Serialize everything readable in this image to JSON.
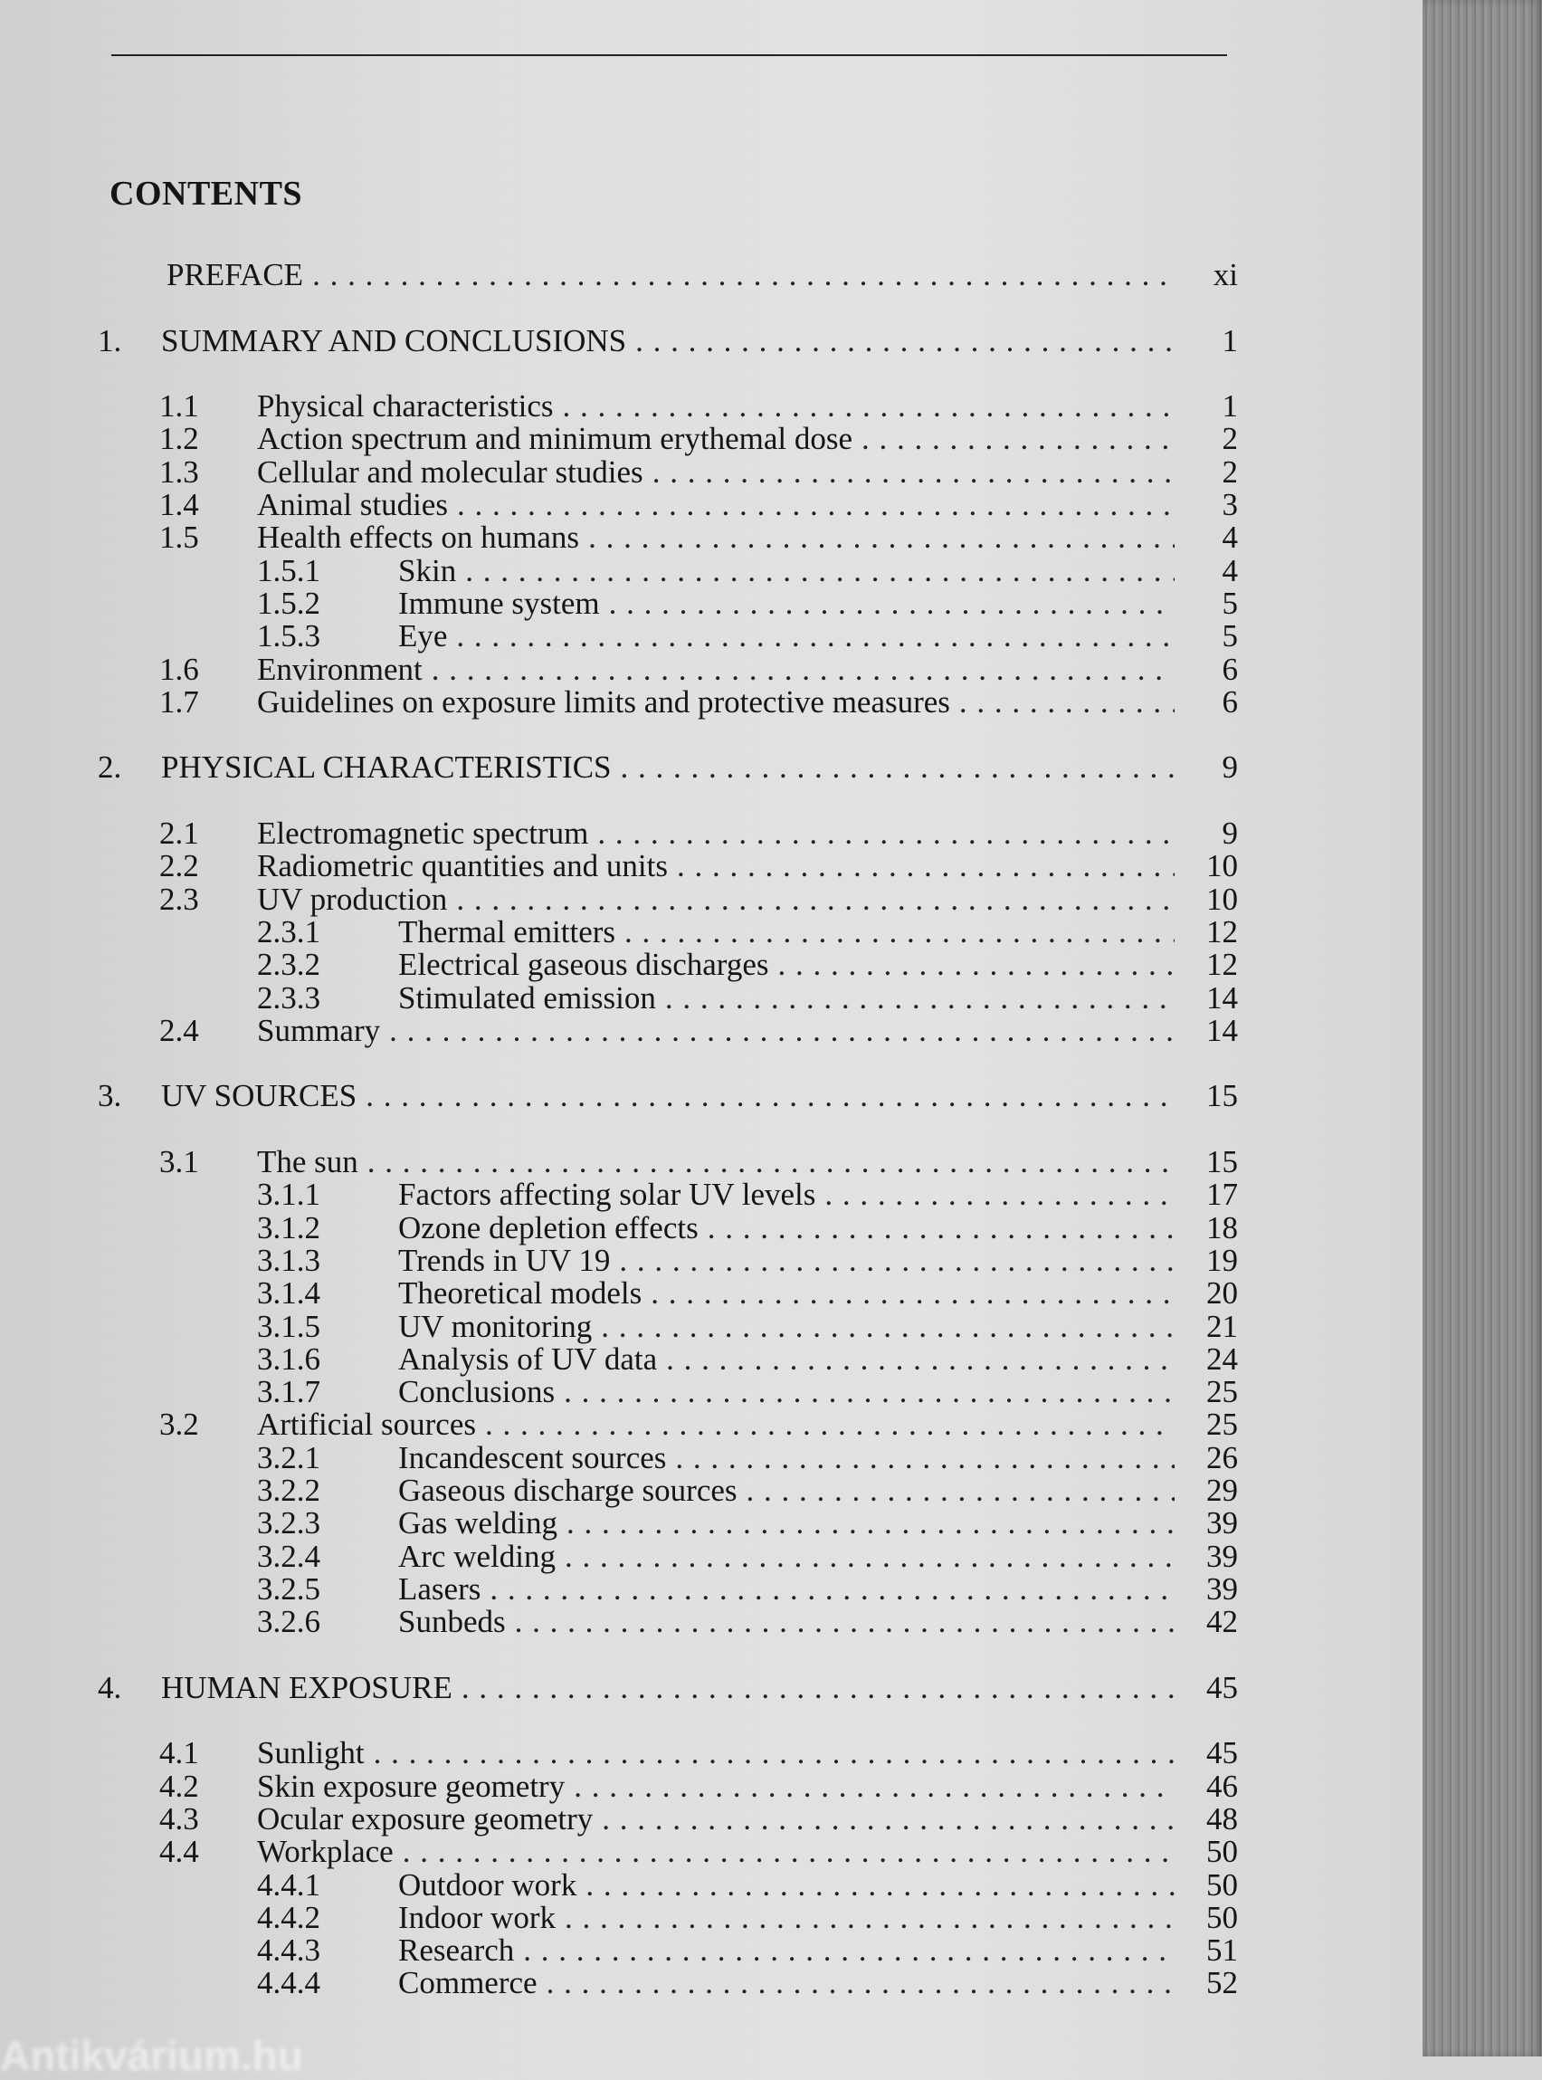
{
  "heading": "CONTENTS",
  "watermark": "Antikvárium.hu",
  "entries": [
    {
      "level": 0,
      "num": "",
      "title": "PREFACE",
      "page": "xi"
    },
    {
      "level": 0,
      "num": "1.",
      "title": "SUMMARY AND CONCLUSIONS",
      "page": "1"
    },
    {
      "level": 1,
      "num": "1.1",
      "title": "Physical characteristics",
      "page": "1"
    },
    {
      "level": 1,
      "num": "1.2",
      "title": "Action spectrum and minimum erythemal dose",
      "page": "2"
    },
    {
      "level": 1,
      "num": "1.3",
      "title": "Cellular and molecular studies",
      "page": "2"
    },
    {
      "level": 1,
      "num": "1.4",
      "title": "Animal studies",
      "page": "3"
    },
    {
      "level": 1,
      "num": "1.5",
      "title": "Health effects on humans",
      "page": "4"
    },
    {
      "level": 2,
      "num": "1.5.1",
      "title": "Skin",
      "page": "4"
    },
    {
      "level": 2,
      "num": "1.5.2",
      "title": "Immune system",
      "page": "5"
    },
    {
      "level": 2,
      "num": "1.5.3",
      "title": "Eye",
      "page": "5"
    },
    {
      "level": 1,
      "num": "1.6",
      "title": "Environment",
      "page": "6"
    },
    {
      "level": 1,
      "num": "1.7",
      "title": "Guidelines on exposure limits and protective measures",
      "page": "6"
    },
    {
      "level": 0,
      "num": "2.",
      "title": "PHYSICAL CHARACTERISTICS",
      "page": "9"
    },
    {
      "level": 1,
      "num": "2.1",
      "title": "Electromagnetic spectrum",
      "page": "9"
    },
    {
      "level": 1,
      "num": "2.2",
      "title": "Radiometric quantities and units",
      "page": "10"
    },
    {
      "level": 1,
      "num": "2.3",
      "title": "UV production",
      "page": "10"
    },
    {
      "level": 2,
      "num": "2.3.1",
      "title": "Thermal emitters",
      "page": "12"
    },
    {
      "level": 2,
      "num": "2.3.2",
      "title": "Electrical gaseous discharges",
      "page": "12"
    },
    {
      "level": 2,
      "num": "2.3.3",
      "title": "Stimulated emission",
      "page": "14"
    },
    {
      "level": 1,
      "num": "2.4",
      "title": "Summary",
      "page": "14"
    },
    {
      "level": 0,
      "num": "3.",
      "title": "UV SOURCES",
      "page": "15"
    },
    {
      "level": 1,
      "num": "3.1",
      "title": "The sun",
      "page": "15"
    },
    {
      "level": 2,
      "num": "3.1.1",
      "title": "Factors affecting solar UV levels",
      "page": "17"
    },
    {
      "level": 2,
      "num": "3.1.2",
      "title": "Ozone depletion effects",
      "page": "18"
    },
    {
      "level": 2,
      "num": "3.1.3",
      "title": "Trends in UV 19",
      "page": "19"
    },
    {
      "level": 2,
      "num": "3.1.4",
      "title": "Theoretical models",
      "page": "20"
    },
    {
      "level": 2,
      "num": "3.1.5",
      "title": "UV monitoring",
      "page": "21"
    },
    {
      "level": 2,
      "num": "3.1.6",
      "title": "Analysis of UV data",
      "page": "24"
    },
    {
      "level": 2,
      "num": "3.1.7",
      "title": "Conclusions",
      "page": "25"
    },
    {
      "level": 1,
      "num": "3.2",
      "title": "Artificial sources",
      "page": "25"
    },
    {
      "level": 2,
      "num": "3.2.1",
      "title": "Incandescent sources",
      "page": "26"
    },
    {
      "level": 2,
      "num": "3.2.2",
      "title": "Gaseous discharge sources",
      "page": "29"
    },
    {
      "level": 2,
      "num": "3.2.3",
      "title": "Gas welding",
      "page": "39"
    },
    {
      "level": 2,
      "num": "3.2.4",
      "title": "Arc welding",
      "page": "39"
    },
    {
      "level": 2,
      "num": "3.2.5",
      "title": "Lasers",
      "page": "39"
    },
    {
      "level": 2,
      "num": "3.2.6",
      "title": "Sunbeds",
      "page": "42"
    },
    {
      "level": 0,
      "num": "4.",
      "title": "HUMAN EXPOSURE",
      "page": "45"
    },
    {
      "level": 1,
      "num": "4.1",
      "title": "Sunlight",
      "page": "45"
    },
    {
      "level": 1,
      "num": "4.2",
      "title": "Skin exposure geometry",
      "page": "46"
    },
    {
      "level": 1,
      "num": "4.3",
      "title": "Ocular exposure geometry",
      "page": "48"
    },
    {
      "level": 1,
      "num": "4.4",
      "title": "Workplace",
      "page": "50"
    },
    {
      "level": 2,
      "num": "4.4.1",
      "title": "Outdoor work",
      "page": "50"
    },
    {
      "level": 2,
      "num": "4.4.2",
      "title": "Indoor work",
      "page": "50"
    },
    {
      "level": 2,
      "num": "4.4.3",
      "title": "Research",
      "page": "51"
    },
    {
      "level": 2,
      "num": "4.4.4",
      "title": "Commerce",
      "page": "52"
    }
  ]
}
